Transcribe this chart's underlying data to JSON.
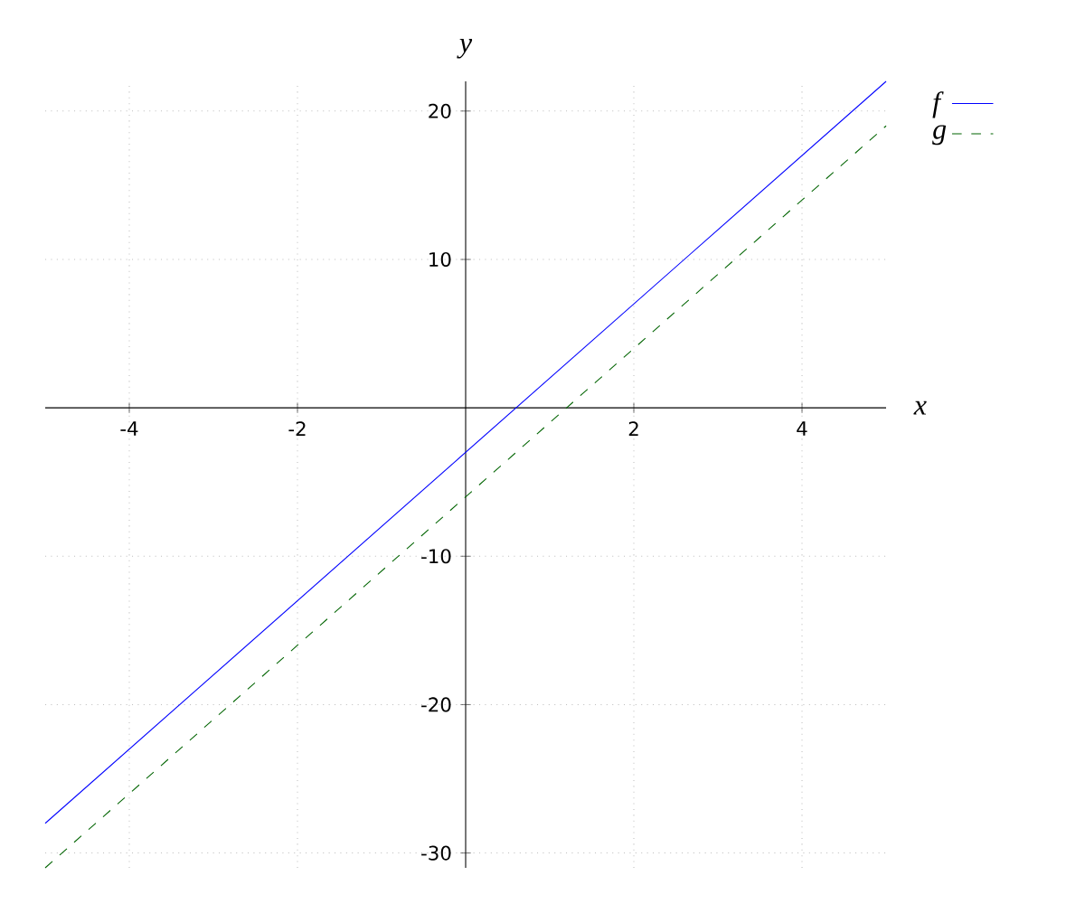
{
  "chart_data": {
    "type": "line",
    "xlabel": "x",
    "ylabel": "y",
    "x": [
      -5,
      5
    ],
    "series": [
      {
        "name": "f",
        "color": "#0000ff",
        "values": [
          -28,
          22
        ],
        "line_style": "solid"
      },
      {
        "name": "g",
        "color": "#006400",
        "values": [
          -31,
          19
        ],
        "line_style": "dashed"
      }
    ],
    "xlim": [
      -5,
      5
    ],
    "ylim": [
      -31,
      22
    ],
    "xticks": [
      -4,
      -2,
      2,
      4
    ],
    "yticks": [
      -30,
      -20,
      -10,
      10,
      20
    ],
    "grid": true,
    "legend": "top right",
    "marker": "none"
  }
}
